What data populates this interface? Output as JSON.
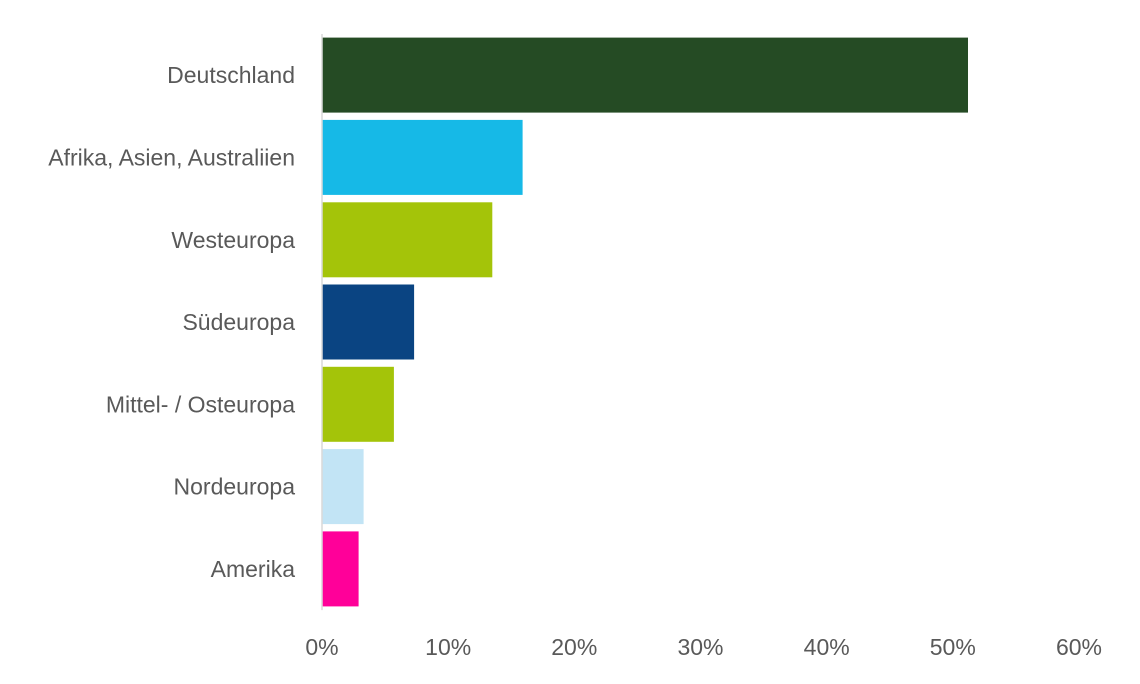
{
  "chart_data": {
    "type": "bar",
    "orientation": "horizontal",
    "categories": [
      "Deutschland",
      "Afrika, Asien, Australiien",
      "Westeuropa",
      "Südeuropa",
      "Mittel- / Osteuropa",
      "Nordeuropa",
      "Amerika"
    ],
    "values": [
      51.2,
      15.9,
      13.5,
      7.3,
      5.7,
      3.3,
      2.9
    ],
    "colors": [
      "#254B24",
      "#16B9E7",
      "#A4C409",
      "#0A4482",
      "#A4C409",
      "#C2E4F5",
      "#FF0099"
    ],
    "xlim": [
      0,
      60
    ],
    "xticks": [
      "0%",
      "10%",
      "20%",
      "30%",
      "40%",
      "50%",
      "60%"
    ],
    "xtick_values": [
      0,
      10,
      20,
      30,
      40,
      50,
      60
    ],
    "grid": false,
    "legend": "none"
  }
}
